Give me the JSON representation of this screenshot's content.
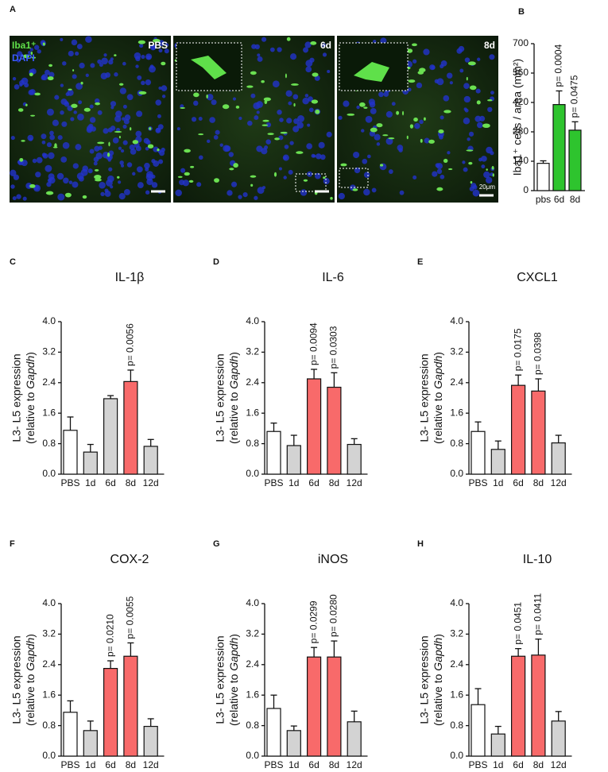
{
  "image_panel": {
    "label": "A",
    "stain_labels": [
      "Iba1⁺",
      "DAPI"
    ],
    "conditions": [
      "PBS",
      "6d",
      "8d"
    ],
    "scale_label": "20μm"
  },
  "chart_data": [
    {
      "type": "bar",
      "label": "B",
      "ylabel": "Iba1⁺ cells / area (mm²)",
      "categories": [
        "pbs",
        "6d",
        "8d"
      ],
      "values": [
        130,
        410,
        288
      ],
      "errors": [
        12,
        65,
        40
      ],
      "colors": [
        "#ffffff",
        "#2ec42e",
        "#2ec42e"
      ],
      "annotations": [
        null,
        "p= 0.0004",
        "p= 0.0475"
      ],
      "ylim": [
        0,
        700
      ],
      "yticks": [
        0,
        140,
        280,
        420,
        560,
        700
      ]
    },
    {
      "type": "bar",
      "label": "C",
      "title": "IL-1β",
      "ylabel": [
        "L3- L5 expression",
        "(relative to ",
        "Gapdh",
        ")"
      ],
      "categories": [
        "PBS",
        "1d",
        "6d",
        "8d",
        "12d"
      ],
      "values": [
        1.15,
        0.58,
        1.98,
        2.43,
        0.73
      ],
      "errors": [
        0.35,
        0.2,
        0.08,
        0.3,
        0.18
      ],
      "colors": [
        "#ffffff",
        "#d3d3d3",
        "#d3d3d3",
        "#f86a6a",
        "#d3d3d3"
      ],
      "annotations": [
        null,
        null,
        null,
        "p= 0.0056",
        null
      ],
      "ylim": [
        0,
        4
      ],
      "yticks": [
        {
          "value": 0,
          "label": "0.0"
        },
        0.8,
        1.6,
        2.4,
        3.2,
        {
          "value": 4,
          "label": "4.0"
        }
      ]
    },
    {
      "type": "bar",
      "label": "D",
      "title": "IL-6",
      "ylabel": [
        "L3- L5 expression",
        "(relative to ",
        "Gapdh",
        ")"
      ],
      "categories": [
        "PBS",
        "1d",
        "6d",
        "8d",
        "12d"
      ],
      "values": [
        1.12,
        0.75,
        2.5,
        2.28,
        0.78
      ],
      "errors": [
        0.22,
        0.27,
        0.25,
        0.38,
        0.15
      ],
      "colors": [
        "#ffffff",
        "#d3d3d3",
        "#f86a6a",
        "#f86a6a",
        "#d3d3d3"
      ],
      "annotations": [
        null,
        null,
        "p= 0.0094",
        "p= 0.0303",
        null
      ],
      "ylim": [
        0,
        4
      ],
      "yticks": [
        {
          "value": 0,
          "label": "0.0"
        },
        0.8,
        1.6,
        2.4,
        3.2,
        {
          "value": 4,
          "label": "4.0"
        }
      ]
    },
    {
      "type": "bar",
      "label": "E",
      "title": "CXCL1",
      "ylabel": [
        "L3- L5 expression",
        "(relative to ",
        "Gapdh",
        ")"
      ],
      "categories": [
        "PBS",
        "1d",
        "6d",
        "8d",
        "12d"
      ],
      "values": [
        1.12,
        0.65,
        2.33,
        2.18,
        0.82
      ],
      "errors": [
        0.25,
        0.22,
        0.27,
        0.32,
        0.2
      ],
      "colors": [
        "#ffffff",
        "#d3d3d3",
        "#f86a6a",
        "#f86a6a",
        "#d3d3d3"
      ],
      "annotations": [
        null,
        null,
        "p= 0.0175",
        "p= 0.0398",
        null
      ],
      "ylim": [
        0,
        4
      ],
      "yticks": [
        {
          "value": 0,
          "label": "0.0"
        },
        0.8,
        1.6,
        2.4,
        3.2,
        {
          "value": 4,
          "label": "4.0"
        }
      ]
    },
    {
      "type": "bar",
      "label": "F",
      "title": "COX-2",
      "ylabel": [
        "L3- L5 expression",
        "(relative to ",
        "Gapdh",
        ")"
      ],
      "categories": [
        "PBS",
        "1d",
        "6d",
        "8d",
        "12d"
      ],
      "values": [
        1.15,
        0.67,
        2.3,
        2.62,
        0.78
      ],
      "errors": [
        0.3,
        0.25,
        0.2,
        0.35,
        0.2
      ],
      "colors": [
        "#ffffff",
        "#d3d3d3",
        "#f86a6a",
        "#f86a6a",
        "#d3d3d3"
      ],
      "annotations": [
        null,
        null,
        "p= 0.0210",
        "p= 0.0055",
        null
      ],
      "ylim": [
        0,
        4
      ],
      "yticks": [
        {
          "value": 0,
          "label": "0.0"
        },
        0.8,
        1.6,
        2.4,
        3.2,
        {
          "value": 4,
          "label": "4.0"
        }
      ]
    },
    {
      "type": "bar",
      "label": "G",
      "title": "iNOS",
      "ylabel": [
        "L3- L5 expression",
        "(relative to ",
        "Gapdh",
        ")"
      ],
      "categories": [
        "PBS",
        "1d",
        "6d",
        "8d",
        "12d"
      ],
      "values": [
        1.25,
        0.67,
        2.6,
        2.6,
        0.9
      ],
      "errors": [
        0.35,
        0.12,
        0.25,
        0.42,
        0.28
      ],
      "colors": [
        "#ffffff",
        "#d3d3d3",
        "#f86a6a",
        "#f86a6a",
        "#d3d3d3"
      ],
      "annotations": [
        null,
        null,
        "p= 0.0299",
        "p= 0.0280",
        null
      ],
      "ylim": [
        0,
        4
      ],
      "yticks": [
        {
          "value": 0,
          "label": "0.0"
        },
        0.8,
        1.6,
        2.4,
        3.2,
        {
          "value": 4,
          "label": "4.0"
        }
      ]
    },
    {
      "type": "bar",
      "label": "H",
      "title": "IL-10",
      "ylabel": [
        "L3- L5 expression",
        "(relative to ",
        "Gapdh",
        ")"
      ],
      "categories": [
        "PBS",
        "1d",
        "6d",
        "8d",
        "12d"
      ],
      "values": [
        1.35,
        0.58,
        2.62,
        2.65,
        0.92
      ],
      "errors": [
        0.42,
        0.2,
        0.2,
        0.42,
        0.25
      ],
      "colors": [
        "#ffffff",
        "#d3d3d3",
        "#f86a6a",
        "#f86a6a",
        "#d3d3d3"
      ],
      "annotations": [
        null,
        null,
        "p= 0.0451",
        "p= 0.0411",
        null
      ],
      "ylim": [
        0,
        4
      ],
      "yticks": [
        {
          "value": 0,
          "label": "0.0"
        },
        0.8,
        1.6,
        2.4,
        3.2,
        {
          "value": 4,
          "label": "4.0"
        }
      ]
    }
  ]
}
